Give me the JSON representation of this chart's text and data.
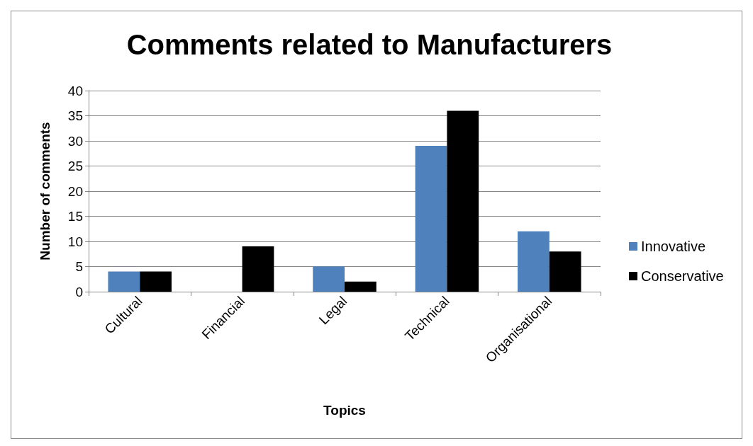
{
  "chart_data": {
    "type": "bar",
    "title": "Comments related to Manufacturers",
    "xlabel": "Topics",
    "ylabel": "Number of comments",
    "categories": [
      "Cultural",
      "Financial",
      "Legal",
      "Technical",
      "Organisational"
    ],
    "series": [
      {
        "name": "Innovative",
        "color": "#4f81bd",
        "values": [
          4,
          0,
          5,
          29,
          12
        ]
      },
      {
        "name": "Conservative",
        "color": "#000000",
        "values": [
          4,
          9,
          2,
          36,
          8
        ]
      }
    ],
    "ylim": [
      0,
      40
    ],
    "yticks": [
      0,
      5,
      10,
      15,
      20,
      25,
      30,
      35,
      40
    ],
    "grid": "y",
    "legend": "right"
  }
}
